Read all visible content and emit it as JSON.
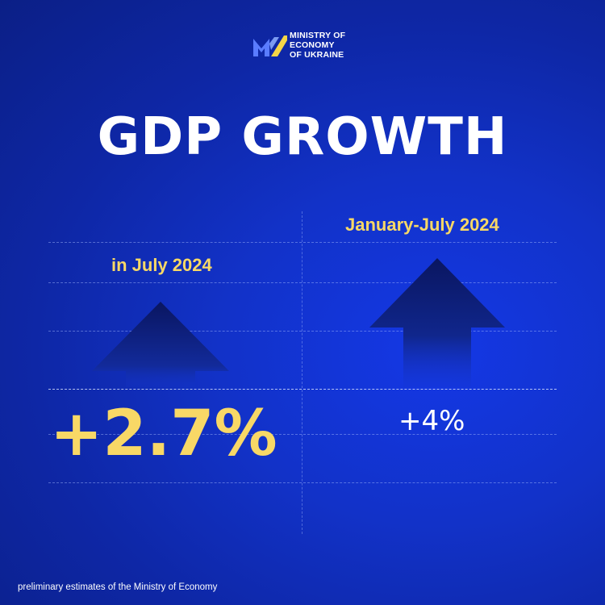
{
  "logo": {
    "icon": "ministry-logo-icon",
    "lines": [
      "MINISTRY OF",
      "ECONOMY",
      "OF UKRAINE"
    ],
    "colors": {
      "blue": "#5a7cff",
      "yellow": "#f5d547"
    }
  },
  "title": "GDP GROWTH",
  "left_panel": {
    "label": "in July 2024",
    "value": "+2.7%",
    "icon": "up-arrow-icon"
  },
  "right_panel": {
    "label": "January-July 2024",
    "value": "+4%",
    "icon": "up-arrow-icon"
  },
  "footer": "preliminary estimates of the Ministry of Economy",
  "colors": {
    "background": "#1232c8",
    "accent": "#f8d866",
    "text": "#ffffff",
    "arrow": "#0b1a6e"
  }
}
